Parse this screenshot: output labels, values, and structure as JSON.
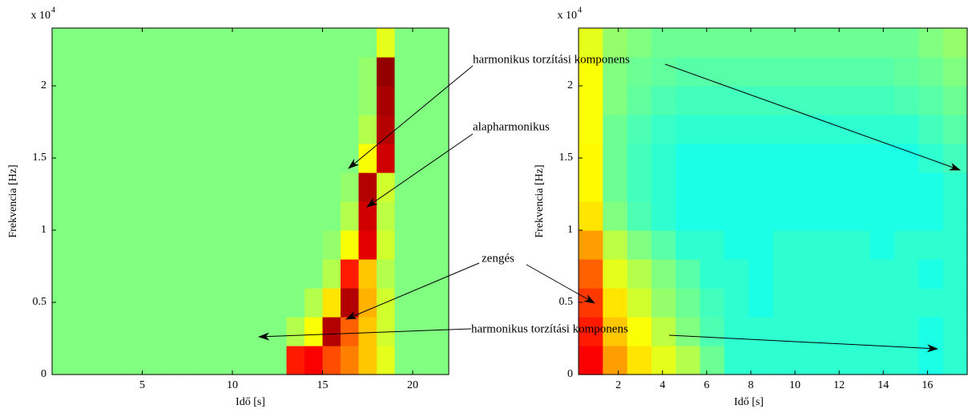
{
  "chart_data": [
    {
      "type": "heatmap",
      "xlabel": "Idő [s]",
      "ylabel": "Frekvencia [Hz]",
      "y_multiplier": {
        "base": "x 10",
        "exponent": "4"
      },
      "xlim": [
        0,
        22
      ],
      "ylim": [
        0,
        2.4
      ],
      "xticks": [
        5,
        10,
        15,
        20
      ],
      "yticks": [
        0,
        0.5,
        1,
        1.5,
        2
      ],
      "colormap": "jet",
      "clim": [
        0,
        1
      ],
      "matrix": [
        [
          0.5,
          0.5,
          0.5,
          0.5,
          0.5,
          0.5,
          0.5,
          0.5,
          0.5,
          0.5,
          0.5,
          0.5,
          0.5,
          0.85,
          0.88,
          0.8,
          0.75,
          0.68,
          0.6,
          0.5,
          0.5,
          0.5
        ],
        [
          0.5,
          0.5,
          0.5,
          0.5,
          0.5,
          0.5,
          0.5,
          0.5,
          0.5,
          0.5,
          0.5,
          0.5,
          0.5,
          0.55,
          0.62,
          0.95,
          0.78,
          0.68,
          0.58,
          0.5,
          0.5,
          0.5
        ],
        [
          0.5,
          0.5,
          0.5,
          0.5,
          0.5,
          0.5,
          0.5,
          0.5,
          0.5,
          0.5,
          0.5,
          0.5,
          0.5,
          0.5,
          0.55,
          0.65,
          0.95,
          0.7,
          0.58,
          0.5,
          0.5,
          0.5
        ],
        [
          0.5,
          0.5,
          0.5,
          0.5,
          0.5,
          0.5,
          0.5,
          0.5,
          0.5,
          0.5,
          0.5,
          0.5,
          0.5,
          0.5,
          0.5,
          0.55,
          0.85,
          0.68,
          0.55,
          0.5,
          0.5,
          0.5
        ],
        [
          0.5,
          0.5,
          0.5,
          0.5,
          0.5,
          0.5,
          0.5,
          0.5,
          0.5,
          0.5,
          0.5,
          0.5,
          0.5,
          0.5,
          0.5,
          0.52,
          0.62,
          0.9,
          0.58,
          0.5,
          0.5,
          0.5
        ],
        [
          0.5,
          0.5,
          0.5,
          0.5,
          0.5,
          0.5,
          0.5,
          0.5,
          0.5,
          0.5,
          0.5,
          0.5,
          0.5,
          0.5,
          0.5,
          0.5,
          0.55,
          0.92,
          0.56,
          0.5,
          0.5,
          0.5
        ],
        [
          0.5,
          0.5,
          0.5,
          0.5,
          0.5,
          0.5,
          0.5,
          0.5,
          0.5,
          0.5,
          0.5,
          0.5,
          0.5,
          0.5,
          0.5,
          0.5,
          0.52,
          0.95,
          0.58,
          0.5,
          0.5,
          0.5
        ],
        [
          0.5,
          0.5,
          0.5,
          0.5,
          0.5,
          0.5,
          0.5,
          0.5,
          0.5,
          0.5,
          0.5,
          0.5,
          0.5,
          0.5,
          0.5,
          0.5,
          0.5,
          0.62,
          0.92,
          0.5,
          0.5,
          0.5
        ],
        [
          0.5,
          0.5,
          0.5,
          0.5,
          0.5,
          0.5,
          0.5,
          0.5,
          0.5,
          0.5,
          0.5,
          0.5,
          0.5,
          0.5,
          0.5,
          0.5,
          0.5,
          0.55,
          0.95,
          0.5,
          0.5,
          0.5
        ],
        [
          0.5,
          0.5,
          0.5,
          0.5,
          0.5,
          0.5,
          0.5,
          0.5,
          0.5,
          0.5,
          0.5,
          0.5,
          0.5,
          0.5,
          0.5,
          0.5,
          0.5,
          0.52,
          0.96,
          0.5,
          0.5,
          0.5
        ],
        [
          0.5,
          0.5,
          0.5,
          0.5,
          0.5,
          0.5,
          0.5,
          0.5,
          0.5,
          0.5,
          0.5,
          0.5,
          0.5,
          0.5,
          0.5,
          0.5,
          0.5,
          0.52,
          0.98,
          0.5,
          0.5,
          0.5
        ],
        [
          0.5,
          0.5,
          0.5,
          0.5,
          0.5,
          0.5,
          0.5,
          0.5,
          0.5,
          0.5,
          0.5,
          0.5,
          0.5,
          0.5,
          0.5,
          0.5,
          0.5,
          0.5,
          0.6,
          0.5,
          0.5,
          0.5
        ]
      ]
    },
    {
      "type": "heatmap",
      "xlabel": "Idő [s]",
      "ylabel": "Frekvencia [Hz]",
      "y_multiplier": {
        "base": "x 10",
        "exponent": "4"
      },
      "xlim": [
        0.2,
        17.8
      ],
      "ylim": [
        0,
        2.4
      ],
      "xticks": [
        2,
        4,
        6,
        8,
        10,
        12,
        14,
        16
      ],
      "yticks": [
        0,
        0.5,
        1,
        1.5,
        2
      ],
      "colormap": "jet",
      "clim": [
        0,
        1
      ],
      "matrix": [
        [
          0.88,
          0.72,
          0.65,
          0.6,
          0.55,
          0.48,
          0.42,
          0.42,
          0.42,
          0.42,
          0.42,
          0.42,
          0.42,
          0.42,
          0.4,
          0.42
        ],
        [
          0.85,
          0.68,
          0.62,
          0.56,
          0.5,
          0.45,
          0.42,
          0.42,
          0.42,
          0.42,
          0.42,
          0.42,
          0.42,
          0.42,
          0.4,
          0.42
        ],
        [
          0.82,
          0.65,
          0.58,
          0.52,
          0.48,
          0.44,
          0.42,
          0.4,
          0.42,
          0.42,
          0.42,
          0.42,
          0.42,
          0.42,
          0.42,
          0.42
        ],
        [
          0.78,
          0.6,
          0.55,
          0.5,
          0.46,
          0.42,
          0.42,
          0.4,
          0.42,
          0.42,
          0.42,
          0.42,
          0.42,
          0.42,
          0.4,
          0.42
        ],
        [
          0.72,
          0.56,
          0.5,
          0.46,
          0.42,
          0.42,
          0.4,
          0.4,
          0.42,
          0.42,
          0.42,
          0.42,
          0.4,
          0.42,
          0.42,
          0.42
        ],
        [
          0.65,
          0.5,
          0.45,
          0.42,
          0.4,
          0.4,
          0.4,
          0.4,
          0.4,
          0.4,
          0.4,
          0.4,
          0.4,
          0.4,
          0.4,
          0.42
        ],
        [
          0.63,
          0.48,
          0.44,
          0.42,
          0.4,
          0.4,
          0.4,
          0.4,
          0.4,
          0.4,
          0.4,
          0.4,
          0.4,
          0.4,
          0.4,
          0.42
        ],
        [
          0.63,
          0.48,
          0.44,
          0.42,
          0.4,
          0.4,
          0.4,
          0.4,
          0.4,
          0.4,
          0.4,
          0.4,
          0.4,
          0.4,
          0.42,
          0.44
        ],
        [
          0.62,
          0.48,
          0.45,
          0.43,
          0.42,
          0.42,
          0.42,
          0.42,
          0.42,
          0.42,
          0.42,
          0.42,
          0.42,
          0.42,
          0.44,
          0.46
        ],
        [
          0.62,
          0.5,
          0.47,
          0.45,
          0.44,
          0.44,
          0.44,
          0.44,
          0.44,
          0.44,
          0.44,
          0.44,
          0.44,
          0.45,
          0.46,
          0.48
        ],
        [
          0.62,
          0.5,
          0.48,
          0.47,
          0.46,
          0.46,
          0.46,
          0.46,
          0.46,
          0.46,
          0.46,
          0.46,
          0.46,
          0.47,
          0.48,
          0.5
        ],
        [
          0.6,
          0.52,
          0.5,
          0.48,
          0.48,
          0.48,
          0.48,
          0.48,
          0.48,
          0.48,
          0.48,
          0.48,
          0.48,
          0.48,
          0.5,
          0.52
        ]
      ]
    }
  ],
  "annotations": [
    "harmonikus torzítási komponens",
    "alapharmonikus",
    "zengés",
    "harmonikus torzítási komponens"
  ]
}
